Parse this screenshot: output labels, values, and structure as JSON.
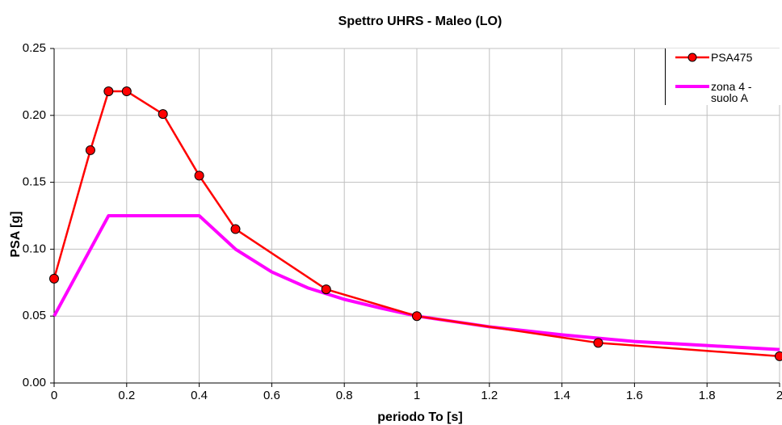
{
  "chart_data": {
    "type": "line",
    "title": "Spettro UHRS - Maleo (LO)",
    "xlabel": "periodo To [s]",
    "ylabel": "PSA [g]",
    "series": [
      {
        "name": "PSA475",
        "color": "#ff0000",
        "markers": true,
        "x": [
          0,
          0.1,
          0.15,
          0.2,
          0.3,
          0.4,
          0.5,
          0.75,
          1,
          1.5,
          2
        ],
        "values": [
          0.078,
          0.174,
          0.218,
          0.218,
          0.201,
          0.155,
          0.115,
          0.07,
          0.05,
          0.03,
          0.02
        ]
      },
      {
        "name": "zona 4 - suolo A",
        "color": "#ff00ff",
        "markers": false,
        "x": [
          0,
          0.15,
          0.4,
          0.5,
          0.6,
          0.7,
          0.8,
          0.9,
          1,
          1.2,
          1.4,
          1.6,
          1.8,
          2
        ],
        "values": [
          0.05,
          0.125,
          0.125,
          0.1,
          0.083,
          0.071,
          0.0625,
          0.056,
          0.05,
          0.042,
          0.036,
          0.031,
          0.028,
          0.025
        ]
      }
    ],
    "xlim": [
      0,
      2
    ],
    "xticks": [
      0,
      0.2,
      0.4,
      0.6,
      0.8,
      1,
      1.2,
      1.4,
      1.6,
      1.8,
      2
    ],
    "ylim": [
      0,
      0.25
    ],
    "yticks": [
      {
        "value": 0,
        "label": "0.00"
      },
      0.05,
      {
        "value": 0.1,
        "label": "0.10"
      },
      0.15,
      {
        "value": 0.2,
        "label": "0.20"
      },
      0.25
    ],
    "grid": true,
    "legend": "top-right"
  }
}
